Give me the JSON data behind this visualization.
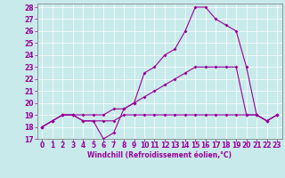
{
  "title": "",
  "xlabel": "Windchill (Refroidissement éolien,°C)",
  "ylabel": "",
  "bg_color": "#c8eaea",
  "line_color": "#990099",
  "xlim": [
    -0.5,
    23.5
  ],
  "ylim": [
    17,
    28.3
  ],
  "xticks": [
    0,
    1,
    2,
    3,
    4,
    5,
    6,
    7,
    8,
    9,
    10,
    11,
    12,
    13,
    14,
    15,
    16,
    17,
    18,
    19,
    20,
    21,
    22,
    23
  ],
  "yticks": [
    17,
    18,
    19,
    20,
    21,
    22,
    23,
    24,
    25,
    26,
    27,
    28
  ],
  "line1_x": [
    0,
    1,
    2,
    3,
    4,
    5,
    6,
    7,
    8,
    9,
    10,
    11,
    12,
    13,
    14,
    15,
    16,
    17,
    18,
    19,
    20,
    21,
    22,
    23
  ],
  "line1_y": [
    18.0,
    18.5,
    19.0,
    19.0,
    18.5,
    18.5,
    18.5,
    18.5,
    19.0,
    19.0,
    19.0,
    19.0,
    19.0,
    19.0,
    19.0,
    19.0,
    19.0,
    19.0,
    19.0,
    19.0,
    19.0,
    19.0,
    18.5,
    19.0
  ],
  "line2_x": [
    0,
    1,
    2,
    3,
    4,
    5,
    6,
    7,
    8,
    9,
    10,
    11,
    12,
    13,
    14,
    15,
    16,
    17,
    18,
    19,
    20,
    21,
    22,
    23
  ],
  "line2_y": [
    18.0,
    18.5,
    19.0,
    19.0,
    19.0,
    19.0,
    19.0,
    19.5,
    19.5,
    20.0,
    20.5,
    21.0,
    21.5,
    22.0,
    22.5,
    23.0,
    23.0,
    23.0,
    23.0,
    23.0,
    19.0,
    19.0,
    18.5,
    19.0
  ],
  "line3_x": [
    0,
    1,
    2,
    3,
    4,
    5,
    6,
    7,
    8,
    9,
    10,
    11,
    12,
    13,
    14,
    15,
    16,
    17,
    18,
    19,
    20,
    21,
    22,
    23
  ],
  "line3_y": [
    18.0,
    18.5,
    19.0,
    19.0,
    18.5,
    18.5,
    17.0,
    17.5,
    19.5,
    20.0,
    22.5,
    23.0,
    24.0,
    24.5,
    26.0,
    28.0,
    28.0,
    27.0,
    26.5,
    26.0,
    23.0,
    19.0,
    18.5,
    19.0
  ],
  "tick_fontsize": 5.5,
  "xlabel_fontsize": 5.5,
  "linewidth": 0.8,
  "markersize": 2.0
}
